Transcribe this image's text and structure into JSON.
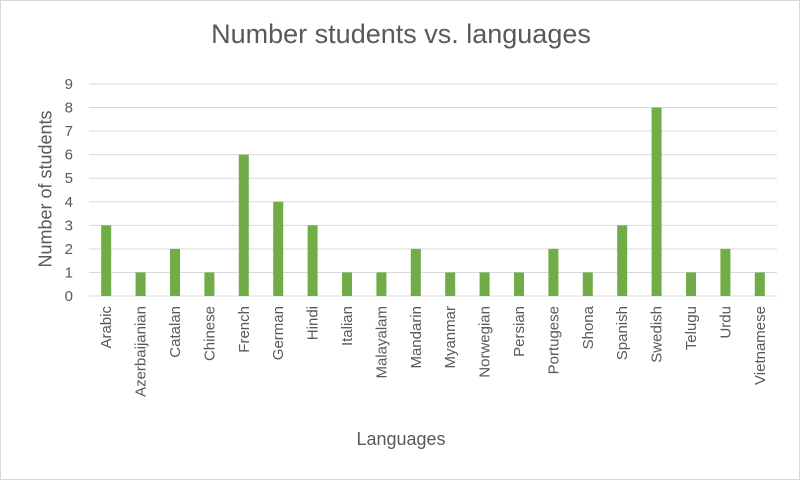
{
  "chart_data": {
    "type": "bar",
    "title": "Number students vs. languages",
    "xlabel": "Languages",
    "ylabel": "Number of students",
    "categories": [
      "Arabic",
      "Azerbaijanian",
      "Catalan",
      "Chinese",
      "French",
      "German",
      "Hindi",
      "Italian",
      "Malayalam",
      "Mandarin",
      "Myanmar",
      "Norwegian",
      "Persian",
      "Portugese",
      "Shona",
      "Spanish",
      "Swedish",
      "Telugu",
      "Urdu",
      "Vietnamese"
    ],
    "values": [
      3,
      1,
      2,
      1,
      6,
      4,
      3,
      1,
      1,
      2,
      1,
      1,
      1,
      2,
      1,
      3,
      8,
      1,
      2,
      1
    ],
    "ylim": [
      0,
      9
    ],
    "yticks": [
      0,
      1,
      2,
      3,
      4,
      5,
      6,
      7,
      8,
      9
    ],
    "grid": true,
    "bar_color": "#70ad47",
    "grid_color": "#d9d9d9"
  }
}
